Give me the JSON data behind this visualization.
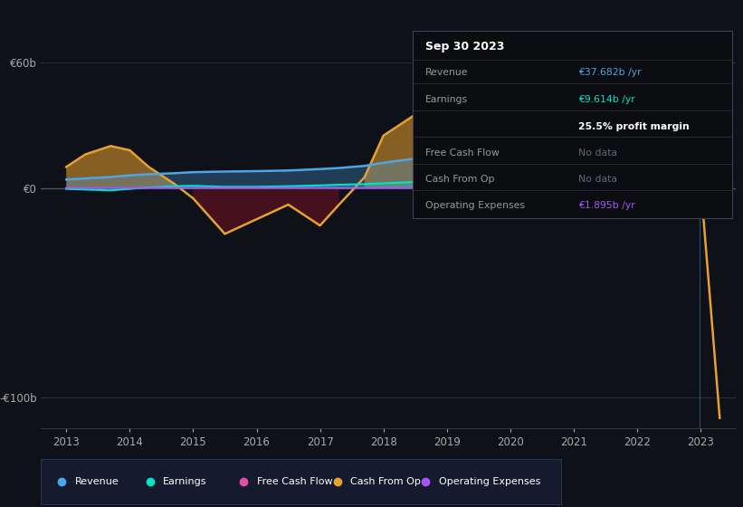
{
  "bg_color": "#0e1117",
  "plot_bg_color": "#0e1117",
  "years": [
    2013.0,
    2013.3,
    2013.7,
    2014.0,
    2014.3,
    2014.7,
    2015.0,
    2015.5,
    2016.0,
    2016.5,
    2017.0,
    2017.3,
    2017.7,
    2018.0,
    2018.5,
    2019.0,
    2019.5,
    2020.0,
    2020.5,
    2021.0,
    2021.5,
    2022.0,
    2022.5,
    2023.0,
    2023.3
  ],
  "revenue": [
    4.0,
    4.5,
    5.2,
    6.0,
    6.5,
    7.0,
    7.5,
    7.8,
    8.0,
    8.3,
    9.0,
    9.5,
    10.5,
    12.0,
    14.0,
    16.5,
    17.5,
    19.0,
    21.0,
    24.5,
    29.5,
    32.0,
    34.5,
    37.5,
    38.5
  ],
  "earnings": [
    -0.5,
    -0.8,
    -1.2,
    -0.5,
    0.2,
    0.8,
    1.0,
    0.5,
    0.5,
    0.8,
    1.2,
    1.5,
    1.8,
    2.2,
    2.8,
    3.2,
    3.5,
    3.8,
    4.2,
    5.5,
    6.5,
    7.5,
    8.5,
    9.0,
    9.6
  ],
  "cash_from_op": [
    10.0,
    16.0,
    20.0,
    18.0,
    10.0,
    2.0,
    -5.0,
    -22.0,
    -15.0,
    -8.0,
    -18.0,
    -8.0,
    5.0,
    25.0,
    35.0,
    28.0,
    6.0,
    3.0,
    48.0,
    52.0,
    42.0,
    52.0,
    40.0,
    2.0,
    -110.0
  ],
  "operating_expenses": [
    0.0,
    0.0,
    0.0,
    0.0,
    0.0,
    0.0,
    0.0,
    0.0,
    0.0,
    0.0,
    0.0,
    0.0,
    0.0,
    0.0,
    0.0,
    0.0,
    -2.0,
    -2.0,
    -2.0,
    -2.0,
    -2.0,
    1.8,
    1.85,
    1.895,
    1.9
  ],
  "ylim": [
    -115,
    68
  ],
  "xtick_years": [
    2013,
    2014,
    2015,
    2016,
    2017,
    2018,
    2019,
    2020,
    2021,
    2022,
    2023
  ],
  "color_revenue": "#4da6e8",
  "color_earnings": "#00e5c8",
  "color_free_cash_flow": "#e84da6",
  "color_cash_from_op": "#e8a030",
  "color_operating_expenses": "#a855f7",
  "legend_bg": "#151b2e",
  "legend_border": "#2a3050"
}
